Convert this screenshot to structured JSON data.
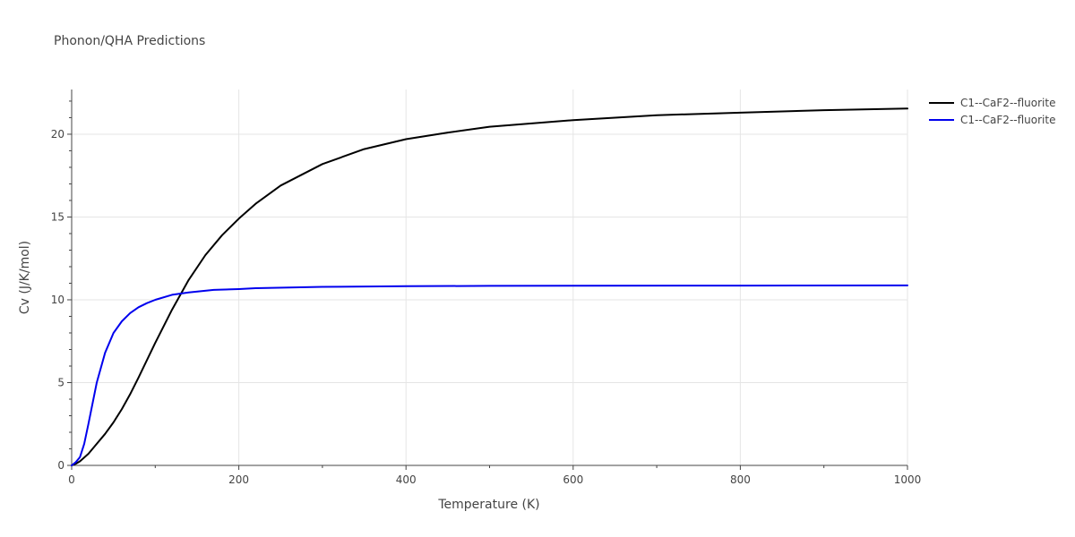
{
  "chart_data": {
    "type": "line",
    "title": "Phonon/QHA Predictions",
    "xlabel": "Temperature (K)",
    "ylabel": "Cv (J/K/mol)",
    "xlim": [
      0,
      1000
    ],
    "ylim": [
      0,
      22.7
    ],
    "x_ticks": [
      0,
      200,
      400,
      600,
      800,
      1000
    ],
    "y_ticks": [
      0,
      5,
      10,
      15,
      20
    ],
    "grid": true,
    "legend_position": "top-right",
    "series": [
      {
        "name": "C1--CaF2--fluorite",
        "color": "#000000",
        "x": [
          0,
          5,
          10,
          20,
          30,
          40,
          50,
          60,
          70,
          80,
          100,
          120,
          140,
          160,
          180,
          200,
          220,
          250,
          300,
          350,
          400,
          450,
          500,
          600,
          700,
          800,
          900,
          1000
        ],
        "y": [
          0,
          0.1,
          0.25,
          0.7,
          1.3,
          1.9,
          2.6,
          3.4,
          4.3,
          5.3,
          7.4,
          9.4,
          11.2,
          12.7,
          13.9,
          14.9,
          15.8,
          16.9,
          18.2,
          19.1,
          19.7,
          20.1,
          20.45,
          20.85,
          21.15,
          21.3,
          21.45,
          21.55
        ]
      },
      {
        "name": "C1--CaF2--fluorite",
        "color": "#0000ee",
        "x": [
          0,
          5,
          10,
          15,
          20,
          30,
          40,
          50,
          60,
          70,
          80,
          90,
          100,
          120,
          140,
          170,
          200,
          220,
          300,
          400,
          500,
          600,
          800,
          1000
        ],
        "y": [
          0,
          0.2,
          0.5,
          1.3,
          2.5,
          5.0,
          6.8,
          8.0,
          8.7,
          9.2,
          9.55,
          9.8,
          10.0,
          10.3,
          10.45,
          10.6,
          10.65,
          10.7,
          10.78,
          10.82,
          10.84,
          10.85,
          10.86,
          10.87
        ]
      }
    ]
  }
}
